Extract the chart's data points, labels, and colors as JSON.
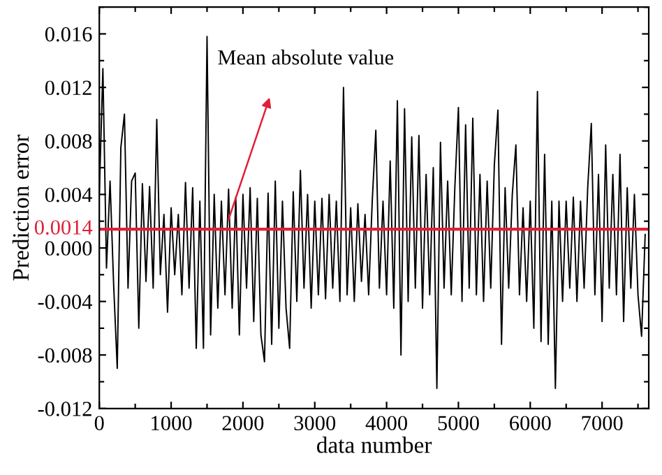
{
  "chart_data": {
    "type": "line",
    "xlabel": "data number",
    "ylabel": "Prediction error",
    "xlim": [
      0,
      7650
    ],
    "ylim": [
      -0.012,
      0.018
    ],
    "xticks": [
      0,
      {
        "value": 500,
        "label": null
      },
      1000,
      {
        "value": 1500,
        "label": null
      },
      2000,
      {
        "value": 2500,
        "label": null
      },
      3000,
      {
        "value": 3500,
        "label": null
      },
      4000,
      {
        "value": 4500,
        "label": null
      },
      5000,
      {
        "value": 5500,
        "label": null
      },
      6000,
      {
        "value": 6500,
        "label": null
      },
      7000,
      {
        "value": 7500,
        "label": null
      }
    ],
    "yticks": [
      {
        "value": -0.012,
        "label": "-0.012"
      },
      {
        "value": -0.01,
        "label": null
      },
      {
        "value": -0.008,
        "label": "-0.008"
      },
      {
        "value": -0.006,
        "label": null
      },
      {
        "value": -0.004,
        "label": "-0.004"
      },
      {
        "value": -0.002,
        "label": null
      },
      {
        "value": 0.0,
        "label": "0.000"
      },
      {
        "value": 0.002,
        "label": null
      },
      {
        "value": 0.004,
        "label": "0.004"
      },
      {
        "value": 0.006,
        "label": null
      },
      {
        "value": 0.008,
        "label": "0.008"
      },
      {
        "value": 0.01,
        "label": null
      },
      {
        "value": 0.012,
        "label": "0.012"
      },
      {
        "value": 0.014,
        "label": null
      },
      {
        "value": 0.016,
        "label": "0.016"
      },
      {
        "value": 0.018,
        "label": null
      }
    ],
    "grid": false,
    "legend": false,
    "marker": "none",
    "line_style": "solid",
    "ref_lines": [
      {
        "axis": "y",
        "value": 0.0014,
        "label": "0.0014",
        "color": "#e0203a"
      }
    ],
    "annotations": [
      "Mean absolute value"
    ],
    "series": [
      {
        "color": "#000000",
        "x": [
          0,
          50,
          100,
          150,
          200,
          250,
          300,
          350,
          400,
          450,
          500,
          550,
          600,
          650,
          700,
          750,
          800,
          850,
          900,
          950,
          1000,
          1050,
          1100,
          1150,
          1200,
          1250,
          1300,
          1350,
          1400,
          1450,
          1500,
          1550,
          1600,
          1650,
          1700,
          1750,
          1800,
          1850,
          1900,
          1950,
          2000,
          2050,
          2100,
          2150,
          2200,
          2250,
          2300,
          2350,
          2400,
          2450,
          2500,
          2550,
          2600,
          2650,
          2700,
          2750,
          2800,
          2850,
          2900,
          2950,
          3000,
          3050,
          3100,
          3150,
          3200,
          3250,
          3300,
          3350,
          3400,
          3450,
          3500,
          3550,
          3600,
          3650,
          3700,
          3750,
          3800,
          3850,
          3900,
          3950,
          4000,
          4050,
          4100,
          4150,
          4200,
          4250,
          4300,
          4350,
          4400,
          4450,
          4500,
          4550,
          4600,
          4650,
          4700,
          4750,
          4800,
          4850,
          4900,
          4950,
          5000,
          5050,
          5100,
          5150,
          5200,
          5250,
          5300,
          5350,
          5400,
          5450,
          5500,
          5550,
          5600,
          5650,
          5700,
          5750,
          5800,
          5850,
          5900,
          5950,
          6000,
          6050,
          6100,
          6150,
          6200,
          6250,
          6300,
          6350,
          6400,
          6450,
          6500,
          6550,
          6600,
          6650,
          6700,
          6750,
          6800,
          6850,
          6900,
          6950,
          7000,
          7050,
          7100,
          7150,
          7200,
          7250,
          7300,
          7350,
          7400,
          7450,
          7500,
          7550,
          7600
        ],
        "values": [
          0.004,
          0.0134,
          -0.0015,
          0.005,
          -0.0028,
          -0.009,
          0.0075,
          0.01,
          -0.003,
          0.005,
          0.0056,
          -0.006,
          0.0048,
          -0.0025,
          0.0046,
          -0.003,
          0.0096,
          -0.002,
          0.0025,
          -0.0048,
          0.003,
          -0.002,
          0.0025,
          -0.0035,
          0.0049,
          -0.003,
          0.0045,
          -0.0075,
          0.0035,
          -0.0075,
          0.0158,
          -0.0065,
          0.004,
          -0.0045,
          0.0035,
          -0.0035,
          0.0044,
          -0.0045,
          0.0038,
          -0.0065,
          0.004,
          -0.003,
          0.0045,
          -0.0055,
          0.0037,
          -0.0065,
          -0.0085,
          0.0041,
          -0.0072,
          0.005,
          -0.006,
          0.0035,
          -0.0045,
          -0.0075,
          0.0042,
          -0.004,
          0.0058,
          -0.003,
          0.004,
          -0.0045,
          0.0035,
          -0.0035,
          0.0037,
          -0.0038,
          0.004,
          -0.003,
          0.0035,
          -0.004,
          0.012,
          -0.0035,
          0.003,
          -0.004,
          0.0033,
          -0.0025,
          0.0025,
          -0.0035,
          0.0035,
          0.0088,
          -0.003,
          0.0035,
          -0.0035,
          0.0065,
          -0.0045,
          0.011,
          -0.008,
          0.0104,
          -0.004,
          0.0083,
          -0.003,
          0.0084,
          -0.0045,
          0.0055,
          -0.0035,
          0.006,
          -0.0105,
          0.0079,
          -0.003,
          0.005,
          -0.0035,
          0.0045,
          0.0105,
          -0.004,
          0.0092,
          -0.003,
          0.0097,
          -0.0035,
          0.0055,
          -0.004,
          0.005,
          -0.003,
          0.0062,
          0.0103,
          -0.0072,
          0.0045,
          -0.003,
          0.004,
          0.0077,
          -0.0035,
          0.003,
          -0.004,
          0.0035,
          -0.006,
          0.0117,
          -0.007,
          0.007,
          -0.0072,
          0.0035,
          -0.0105,
          0.0035,
          -0.004,
          0.0035,
          -0.003,
          0.0038,
          -0.004,
          0.0035,
          -0.003,
          0.0045,
          0.0093,
          -0.0035,
          0.0055,
          -0.0055,
          0.0077,
          -0.003,
          0.0055,
          -0.0035,
          0.007,
          -0.0055,
          0.0045,
          -0.003,
          0.004,
          -0.0035,
          -0.0066,
          0.001
        ]
      }
    ]
  }
}
